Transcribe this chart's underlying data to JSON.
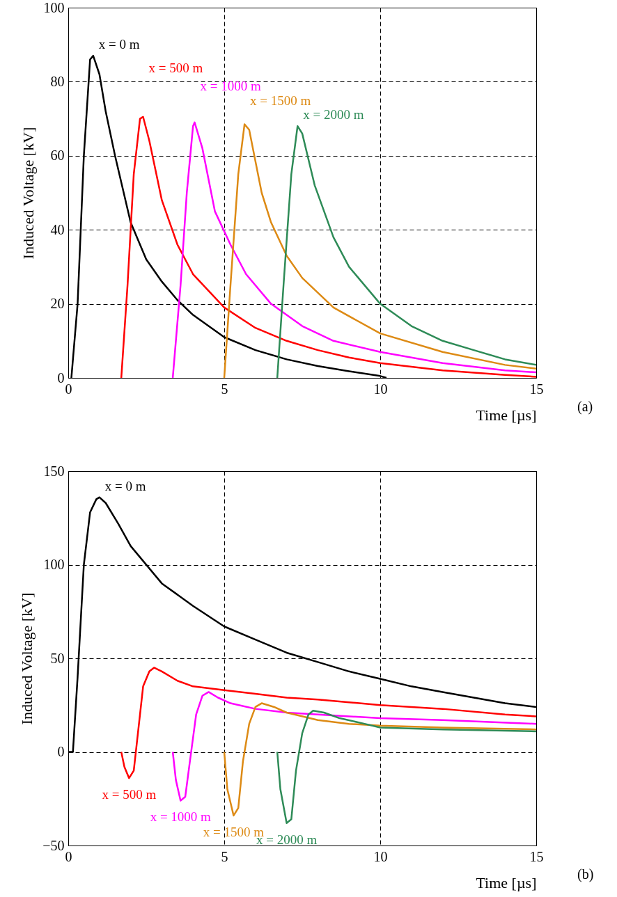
{
  "chart_data": [
    {
      "type": "line",
      "xlabel": "Time [µs]",
      "ylabel": "Induced Voltage [kV]",
      "xlim": [
        0,
        15
      ],
      "xticks": [
        0,
        5,
        10,
        15
      ],
      "ylim": [
        0,
        100
      ],
      "yticks": [
        0,
        20,
        40,
        60,
        80,
        100
      ],
      "grid": true,
      "series": [
        {
          "name": "x = 0 m",
          "color": "#000000",
          "x": [
            0.1,
            0.3,
            0.5,
            0.7,
            0.8,
            1.0,
            1.2,
            1.5,
            2.0,
            2.5,
            3,
            3.5,
            4,
            5,
            6,
            7,
            8,
            9,
            10,
            10.2
          ],
          "values": [
            0,
            20,
            60,
            86,
            87,
            82,
            72,
            60,
            42,
            32,
            26,
            21,
            17,
            11,
            7.5,
            5,
            3.2,
            1.8,
            0.5,
            0
          ]
        },
        {
          "name": "x = 500 m",
          "color": "#ff0000",
          "x": [
            1.7,
            1.9,
            2.1,
            2.3,
            2.4,
            2.6,
            3,
            3.5,
            4,
            5,
            6,
            7,
            8,
            9,
            10,
            12,
            14,
            15
          ],
          "values": [
            0,
            25,
            55,
            70,
            70.5,
            64,
            48,
            36,
            28,
            19,
            13.5,
            10,
            7.5,
            5.5,
            4,
            2,
            0.8,
            0.3
          ]
        },
        {
          "name": "x = 1000 m",
          "color": "#ff00ff",
          "x": [
            3.35,
            3.6,
            3.8,
            4.0,
            4.05,
            4.3,
            4.7,
            5.2,
            5.7,
            6.5,
            7.5,
            8.5,
            10,
            12,
            14,
            15
          ],
          "values": [
            0,
            25,
            50,
            68,
            69,
            62,
            45,
            36,
            28,
            20,
            14,
            10,
            7,
            4,
            2,
            1.5
          ]
        },
        {
          "name": "x = 1500 m",
          "color": "#dd8a14",
          "x": [
            5.0,
            5.2,
            5.45,
            5.65,
            5.8,
            6.2,
            6.5,
            7,
            7.5,
            8.5,
            10,
            12,
            14,
            15
          ],
          "values": [
            0,
            25,
            55,
            68.5,
            67,
            50,
            42,
            33,
            27,
            19,
            12,
            7,
            3.5,
            2.5
          ]
        },
        {
          "name": "x = 2000 m",
          "color": "#2e8b57",
          "x": [
            6.7,
            6.9,
            7.15,
            7.35,
            7.5,
            7.9,
            8.5,
            9,
            10,
            11,
            12,
            13,
            14,
            15
          ],
          "values": [
            0,
            25,
            55,
            68,
            66,
            52,
            38,
            30,
            20,
            14,
            10,
            7.5,
            5,
            3.5
          ]
        }
      ],
      "annotations": [
        "(a)"
      ]
    },
    {
      "type": "line",
      "xlabel": "Time [µs]",
      "ylabel": "Induced Voltage [kV]",
      "xlim": [
        0,
        15
      ],
      "xticks": [
        0,
        5,
        10,
        15
      ],
      "ylim": [
        -50,
        150
      ],
      "yticks": [
        -50,
        0,
        50,
        100,
        150
      ],
      "grid": true,
      "series": [
        {
          "name": "x = 0 m",
          "color": "#000000",
          "x": [
            0,
            0.15,
            0.3,
            0.5,
            0.7,
            0.9,
            1.0,
            1.2,
            1.6,
            2,
            3,
            4,
            5,
            6,
            7,
            8,
            9,
            10,
            11,
            12,
            13,
            14,
            15
          ],
          "values": [
            0,
            0,
            40,
            100,
            128,
            135,
            136,
            133,
            122,
            110,
            90,
            78,
            67,
            60,
            53,
            48,
            43,
            39,
            35,
            32,
            29,
            26,
            24
          ]
        },
        {
          "name": "x = 500 m",
          "color": "#ff0000",
          "x": [
            1.7,
            1.8,
            1.95,
            2.1,
            2.2,
            2.4,
            2.6,
            2.75,
            3,
            3.5,
            4,
            5,
            6,
            7,
            8,
            9,
            10,
            12,
            14,
            15
          ],
          "values": [
            0,
            -8,
            -14,
            -10,
            5,
            35,
            43,
            45,
            43,
            38,
            35,
            33,
            31,
            29,
            28,
            26.5,
            25,
            23,
            20,
            19
          ]
        },
        {
          "name": "x = 1000 m",
          "color": "#ff00ff",
          "x": [
            3.35,
            3.45,
            3.6,
            3.75,
            3.9,
            4.1,
            4.3,
            4.5,
            4.8,
            5.2,
            6,
            7,
            8,
            10,
            12,
            15
          ],
          "values": [
            0,
            -15,
            -26,
            -24,
            -5,
            20,
            30,
            32,
            29,
            26,
            23,
            21,
            20,
            18,
            17,
            15
          ]
        },
        {
          "name": "x = 1500 m",
          "color": "#dd8a14",
          "x": [
            5.0,
            5.1,
            5.3,
            5.45,
            5.6,
            5.8,
            6.0,
            6.2,
            6.6,
            7,
            8,
            9,
            10,
            12,
            15
          ],
          "values": [
            0,
            -20,
            -34,
            -30,
            -5,
            15,
            24,
            26,
            24,
            21,
            17,
            15,
            14,
            13,
            12
          ]
        },
        {
          "name": "x = 2000 m",
          "color": "#2e8b57",
          "x": [
            6.7,
            6.8,
            7.0,
            7.15,
            7.3,
            7.5,
            7.7,
            7.85,
            8.2,
            8.7,
            9.5,
            10,
            12,
            15
          ],
          "values": [
            0,
            -20,
            -38,
            -36,
            -10,
            10,
            20,
            22,
            21,
            18,
            15,
            13,
            12,
            11
          ]
        }
      ],
      "annotations": [
        "(b)"
      ]
    }
  ]
}
